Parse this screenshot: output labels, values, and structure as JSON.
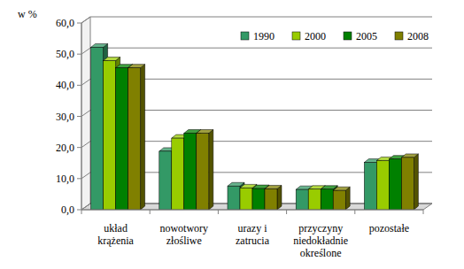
{
  "chart_data": {
    "type": "bar",
    "y_label": "w %",
    "categories": [
      "układ krążenia",
      "nowotwory złośliwe",
      "urazy i zatrucia",
      "przyczyny niedokładnie określone",
      "pozostałe"
    ],
    "series": [
      {
        "name": "1990",
        "color": "#339966",
        "values": [
          52.2,
          18.8,
          7.6,
          6.5,
          15.2
        ]
      },
      {
        "name": "2000",
        "color": "#99cc00",
        "values": [
          47.9,
          23.0,
          7.0,
          6.6,
          15.8
        ]
      },
      {
        "name": "2005",
        "color": "#008000",
        "values": [
          45.6,
          24.6,
          6.8,
          6.6,
          16.3
        ]
      },
      {
        "name": "2008",
        "color": "#808000",
        "values": [
          45.6,
          24.6,
          6.7,
          6.2,
          16.8
        ]
      }
    ],
    "ylim": [
      0,
      60
    ],
    "yticks": [
      {
        "value": 0,
        "label": "0,0"
      },
      {
        "value": 10,
        "label": "10,0"
      },
      {
        "value": 20,
        "label": "20,0"
      },
      {
        "value": 30,
        "label": "30,0"
      },
      {
        "value": 40,
        "label": "40,0"
      },
      {
        "value": 50,
        "label": "50,0"
      },
      {
        "value": 60,
        "label": "60,0"
      }
    ],
    "grid": true,
    "legend": "top-right"
  }
}
